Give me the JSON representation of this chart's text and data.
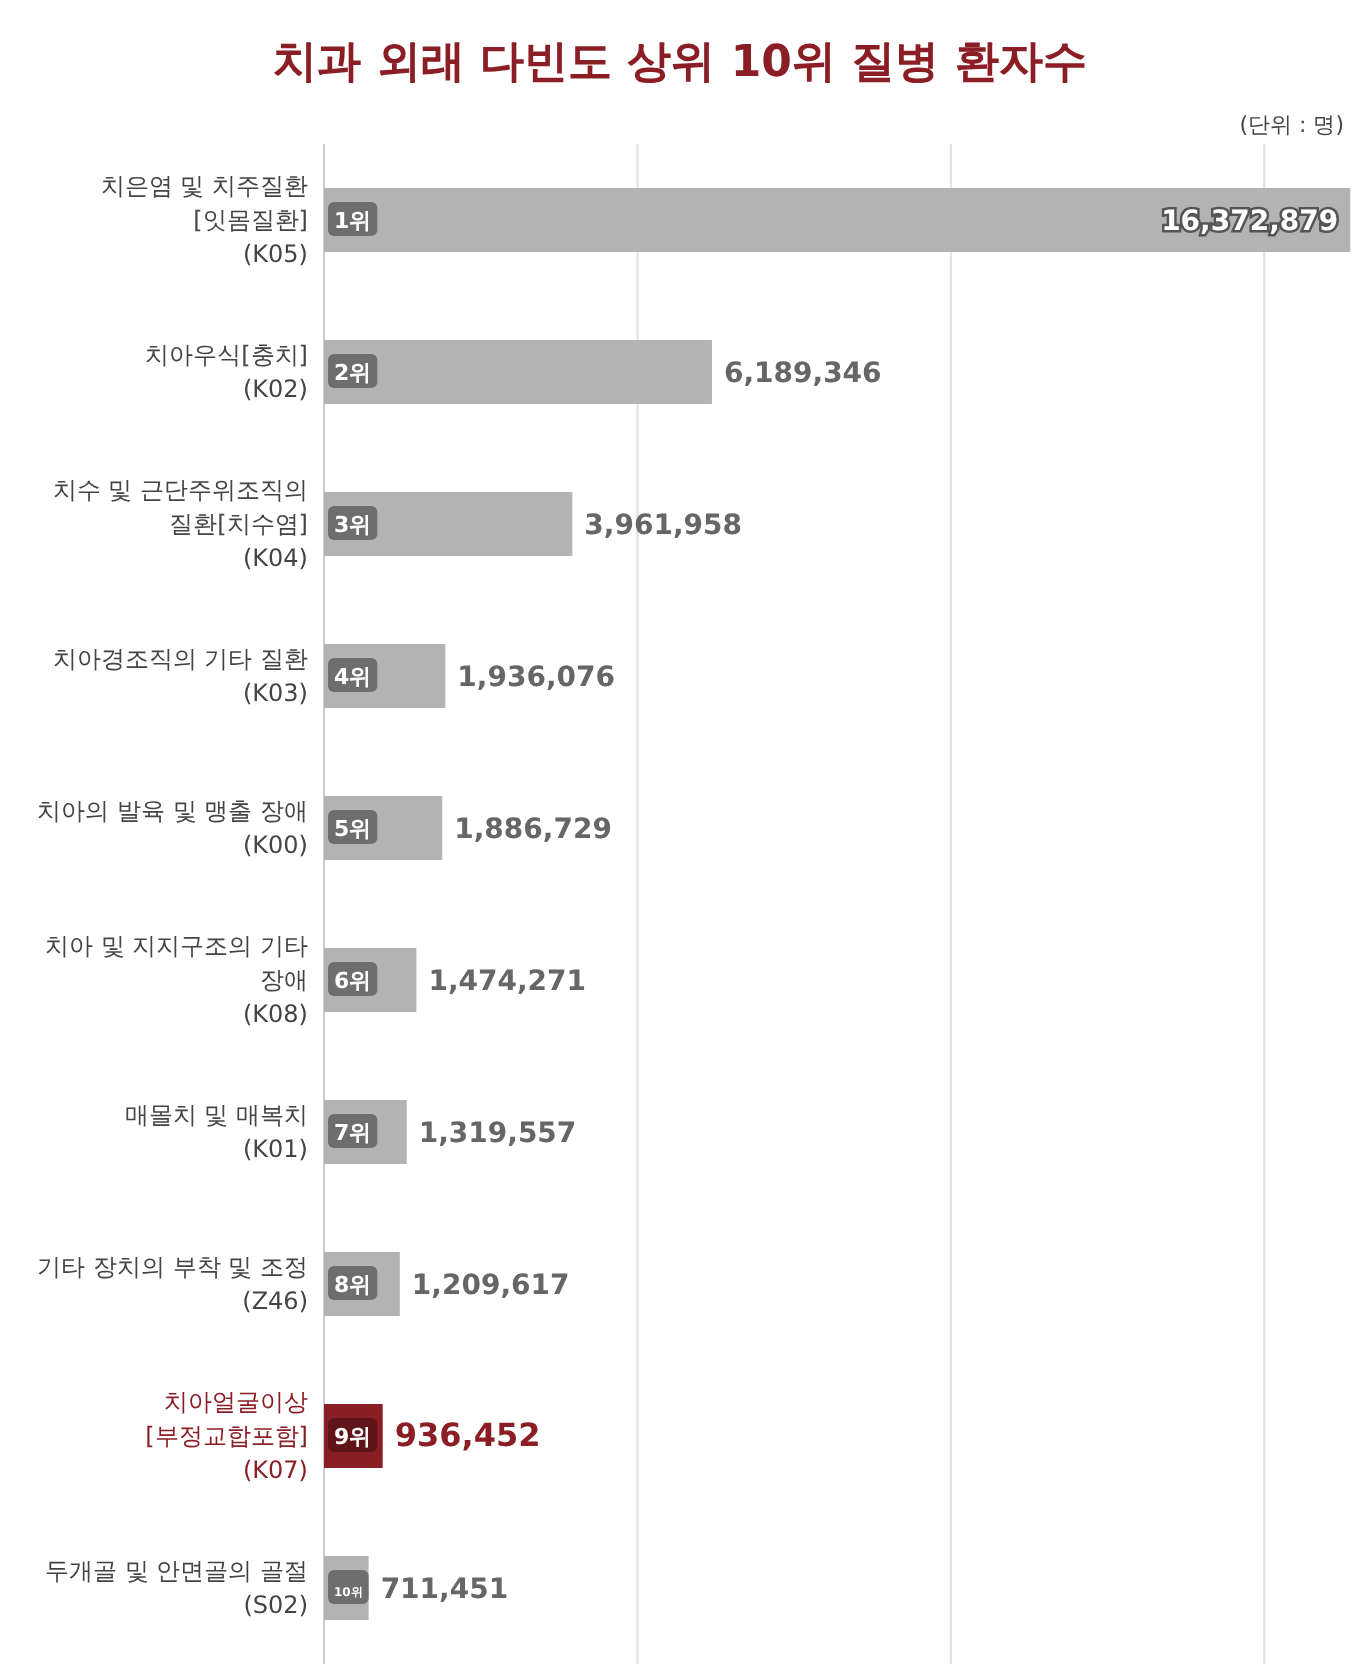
{
  "chart_data": {
    "type": "bar",
    "orientation": "horizontal",
    "title": "치과 외래 다빈도 상위 10위 질병 환자수",
    "categories": [
      "치은염 및 치주질환[잇몸질환] (K05)",
      "치아우식[충치] (K02)",
      "치수 및 근단주위조직의 질환[치수염] (K04)",
      "치아경조직의 기타 질환 (K03)",
      "치아의 발육 및 맹출 장애 (K00)",
      "치아 및 지지구조의 기타 장애 (K08)",
      "매몰치 및 매복치 (K01)",
      "기타 장치의 부착 및 조정 (Z46)",
      "치아얼굴이상[부정교합포함] (K07)",
      "두개골 및 안면골의 골절 (S02)"
    ],
    "values": [
      16372879,
      6189346,
      3961958,
      1936076,
      1886729,
      1474271,
      1319557,
      1209617,
      936452,
      711451
    ],
    "value_labels": [
      "16,372,879",
      "6,189,346",
      "3,961,958",
      "1,936,076",
      "1,886,729",
      "1,474,271",
      "1,319,557",
      "1,209,617",
      "936,452",
      "711,451"
    ],
    "colors": [
      "#b3b3b3",
      "#b3b3b3",
      "#b3b3b3",
      "#b3b3b3",
      "#b3b3b3",
      "#b3b3b3",
      "#b3b3b3",
      "#b3b3b3",
      "#8b1e24",
      "#b3b3b3"
    ],
    "xlim": [
      0,
      16400000
    ],
    "xticks": [
      {
        "value": 5000000,
        "label": null
      },
      {
        "value": 10000000,
        "label": null
      },
      {
        "value": 15000000,
        "label": null
      }
    ],
    "grid": "x",
    "tick_labels": "y",
    "annotations": [
      "(단위 : 명)",
      "1위",
      "2위",
      "3위",
      "4위",
      "5위",
      "6위",
      "7위",
      "8위",
      "9위",
      "10위"
    ]
  }
}
